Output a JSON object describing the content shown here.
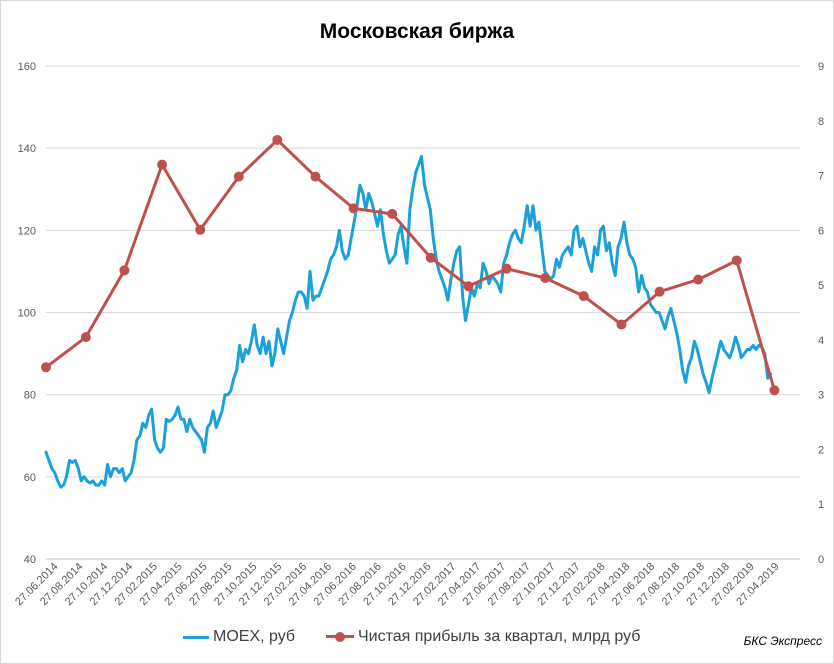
{
  "chart_data": {
    "type": "line",
    "title": "Московская биржа",
    "left_axis": {
      "ylim": [
        40,
        160
      ],
      "ticks": [
        40,
        60,
        80,
        100,
        120,
        140,
        160
      ]
    },
    "right_axis": {
      "ylim": [
        0,
        9
      ],
      "ticks": [
        0,
        1,
        2,
        3,
        4,
        5,
        6,
        7,
        8,
        9
      ]
    },
    "x_range": [
      "2014-06-27",
      "2019-05-31"
    ],
    "x_tick_labels": [
      "27.06.2014",
      "27.08.2014",
      "27.10.2014",
      "27.12.2014",
      "27.02.2015",
      "27.04.2015",
      "27.06.2015",
      "27.08.2015",
      "27.10.2015",
      "27.12.2015",
      "27.02.2016",
      "27.04.2016",
      "27.06.2016",
      "27.08.2016",
      "27.10.2016",
      "27.12.2016",
      "27.02.2017",
      "27.04.2017",
      "27.06.2017",
      "27.08.2017",
      "27.10.2017",
      "27.12.2017",
      "27.02.2018",
      "27.04.2018",
      "27.06.2018",
      "27.08.2018",
      "27.10.2018",
      "27.12.2018",
      "27.02.2019",
      "27.04.2019"
    ],
    "grid": true,
    "legend_position": "bottom",
    "series": [
      {
        "name": "MOEX, руб",
        "axis": "left",
        "color": "#1ba1d9",
        "points": [
          [
            "2014-06-27",
            66
          ],
          [
            "2014-07-04",
            64
          ],
          [
            "2014-07-11",
            62
          ],
          [
            "2014-07-18",
            61
          ],
          [
            "2014-07-25",
            59
          ],
          [
            "2014-08-01",
            57.5
          ],
          [
            "2014-08-08",
            58
          ],
          [
            "2014-08-15",
            60
          ],
          [
            "2014-08-22",
            64
          ],
          [
            "2014-08-29",
            63.5
          ],
          [
            "2014-09-05",
            64
          ],
          [
            "2014-09-12",
            62
          ],
          [
            "2014-09-19",
            59
          ],
          [
            "2014-09-26",
            60
          ],
          [
            "2014-10-03",
            59
          ],
          [
            "2014-10-10",
            58.5
          ],
          [
            "2014-10-17",
            59
          ],
          [
            "2014-10-24",
            58
          ],
          [
            "2014-10-31",
            58
          ],
          [
            "2014-11-07",
            59
          ],
          [
            "2014-11-14",
            58
          ],
          [
            "2014-11-21",
            63
          ],
          [
            "2014-11-28",
            60
          ],
          [
            "2014-12-05",
            62
          ],
          [
            "2014-12-12",
            62
          ],
          [
            "2014-12-19",
            61
          ],
          [
            "2014-12-26",
            62
          ],
          [
            "2015-01-02",
            59
          ],
          [
            "2015-01-09",
            60
          ],
          [
            "2015-01-16",
            61
          ],
          [
            "2015-01-23",
            64
          ],
          [
            "2015-01-30",
            69
          ],
          [
            "2015-02-06",
            70
          ],
          [
            "2015-02-13",
            73
          ],
          [
            "2015-02-20",
            72
          ],
          [
            "2015-02-27",
            75
          ],
          [
            "2015-03-06",
            76.5
          ],
          [
            "2015-03-13",
            69
          ],
          [
            "2015-03-20",
            67
          ],
          [
            "2015-03-27",
            66
          ],
          [
            "2015-04-03",
            67
          ],
          [
            "2015-04-10",
            74
          ],
          [
            "2015-04-17",
            73.5
          ],
          [
            "2015-04-24",
            74
          ],
          [
            "2015-05-01",
            75
          ],
          [
            "2015-05-08",
            77
          ],
          [
            "2015-05-15",
            74
          ],
          [
            "2015-05-22",
            74
          ],
          [
            "2015-05-29",
            71
          ],
          [
            "2015-06-05",
            74
          ],
          [
            "2015-06-12",
            72
          ],
          [
            "2015-06-19",
            71
          ],
          [
            "2015-06-26",
            70
          ],
          [
            "2015-07-03",
            69
          ],
          [
            "2015-07-10",
            66
          ],
          [
            "2015-07-17",
            72
          ],
          [
            "2015-07-24",
            73
          ],
          [
            "2015-07-31",
            76
          ],
          [
            "2015-08-07",
            72
          ],
          [
            "2015-08-14",
            74
          ],
          [
            "2015-08-21",
            76
          ],
          [
            "2015-08-28",
            80
          ],
          [
            "2015-09-04",
            80
          ],
          [
            "2015-09-11",
            81
          ],
          [
            "2015-09-18",
            84
          ],
          [
            "2015-09-25",
            86
          ],
          [
            "2015-10-02",
            92
          ],
          [
            "2015-10-09",
            88
          ],
          [
            "2015-10-16",
            91
          ],
          [
            "2015-10-23",
            90
          ],
          [
            "2015-10-30",
            93
          ],
          [
            "2015-11-06",
            97
          ],
          [
            "2015-11-13",
            92
          ],
          [
            "2015-11-20",
            90
          ],
          [
            "2015-11-27",
            94
          ],
          [
            "2015-12-04",
            90
          ],
          [
            "2015-12-11",
            93
          ],
          [
            "2015-12-18",
            87
          ],
          [
            "2015-12-25",
            90
          ],
          [
            "2016-01-01",
            96
          ],
          [
            "2016-01-08",
            93
          ],
          [
            "2016-01-15",
            90
          ],
          [
            "2016-01-22",
            94
          ],
          [
            "2016-01-29",
            98
          ],
          [
            "2016-02-05",
            100
          ],
          [
            "2016-02-12",
            103
          ],
          [
            "2016-02-19",
            105
          ],
          [
            "2016-02-26",
            105
          ],
          [
            "2016-03-04",
            104
          ],
          [
            "2016-03-11",
            101
          ],
          [
            "2016-03-18",
            110
          ],
          [
            "2016-03-25",
            103
          ],
          [
            "2016-04-01",
            104
          ],
          [
            "2016-04-08",
            104
          ],
          [
            "2016-04-15",
            106
          ],
          [
            "2016-04-22",
            108
          ],
          [
            "2016-04-29",
            110
          ],
          [
            "2016-05-06",
            113
          ],
          [
            "2016-05-13",
            114
          ],
          [
            "2016-05-20",
            116
          ],
          [
            "2016-05-27",
            120
          ],
          [
            "2016-06-03",
            115
          ],
          [
            "2016-06-10",
            113
          ],
          [
            "2016-06-17",
            114
          ],
          [
            "2016-06-24",
            118
          ],
          [
            "2016-07-01",
            122
          ],
          [
            "2016-07-08",
            126
          ],
          [
            "2016-07-15",
            131
          ],
          [
            "2016-07-22",
            129
          ],
          [
            "2016-07-29",
            125
          ],
          [
            "2016-08-05",
            129
          ],
          [
            "2016-08-12",
            127
          ],
          [
            "2016-08-19",
            124
          ],
          [
            "2016-08-26",
            121
          ],
          [
            "2016-09-02",
            125
          ],
          [
            "2016-09-09",
            119
          ],
          [
            "2016-09-16",
            115
          ],
          [
            "2016-09-23",
            112
          ],
          [
            "2016-09-30",
            113
          ],
          [
            "2016-10-07",
            114
          ],
          [
            "2016-10-14",
            119
          ],
          [
            "2016-10-21",
            121
          ],
          [
            "2016-10-28",
            116
          ],
          [
            "2016-11-04",
            112
          ],
          [
            "2016-11-11",
            125
          ],
          [
            "2016-11-18",
            130
          ],
          [
            "2016-11-25",
            134
          ],
          [
            "2016-12-02",
            136
          ],
          [
            "2016-12-09",
            138
          ],
          [
            "2016-12-16",
            131
          ],
          [
            "2016-12-23",
            128
          ],
          [
            "2016-12-30",
            125
          ],
          [
            "2017-01-06",
            118
          ],
          [
            "2017-01-13",
            113
          ],
          [
            "2017-01-20",
            110
          ],
          [
            "2017-01-27",
            108
          ],
          [
            "2017-02-03",
            106
          ],
          [
            "2017-02-10",
            103
          ],
          [
            "2017-02-17",
            108
          ],
          [
            "2017-02-24",
            112
          ],
          [
            "2017-03-03",
            115
          ],
          [
            "2017-03-10",
            116
          ],
          [
            "2017-03-17",
            104
          ],
          [
            "2017-03-24",
            98
          ],
          [
            "2017-03-31",
            102
          ],
          [
            "2017-04-07",
            106
          ],
          [
            "2017-04-14",
            104
          ],
          [
            "2017-04-21",
            107
          ],
          [
            "2017-04-28",
            106
          ],
          [
            "2017-05-05",
            112
          ],
          [
            "2017-05-12",
            110
          ],
          [
            "2017-05-19",
            107
          ],
          [
            "2017-05-26",
            109
          ],
          [
            "2017-06-02",
            108
          ],
          [
            "2017-06-09",
            107
          ],
          [
            "2017-06-16",
            105
          ],
          [
            "2017-06-23",
            112
          ],
          [
            "2017-06-30",
            114
          ],
          [
            "2017-07-07",
            117
          ],
          [
            "2017-07-14",
            119
          ],
          [
            "2017-07-21",
            120
          ],
          [
            "2017-07-28",
            118
          ],
          [
            "2017-08-04",
            117
          ],
          [
            "2017-08-11",
            121
          ],
          [
            "2017-08-18",
            126
          ],
          [
            "2017-08-25",
            121
          ],
          [
            "2017-09-01",
            126
          ],
          [
            "2017-09-08",
            120
          ],
          [
            "2017-09-15",
            122
          ],
          [
            "2017-09-22",
            116
          ],
          [
            "2017-09-29",
            110
          ],
          [
            "2017-10-06",
            109
          ],
          [
            "2017-10-13",
            108
          ],
          [
            "2017-10-20",
            109
          ],
          [
            "2017-10-27",
            113
          ],
          [
            "2017-11-03",
            111
          ],
          [
            "2017-11-10",
            114
          ],
          [
            "2017-11-17",
            115
          ],
          [
            "2017-11-24",
            116
          ],
          [
            "2017-12-01",
            114
          ],
          [
            "2017-12-08",
            120
          ],
          [
            "2017-12-15",
            121
          ],
          [
            "2017-12-22",
            116
          ],
          [
            "2017-12-29",
            118
          ],
          [
            "2018-01-05",
            115
          ],
          [
            "2018-01-12",
            112
          ],
          [
            "2018-01-19",
            110
          ],
          [
            "2018-01-26",
            116
          ],
          [
            "2018-02-02",
            114
          ],
          [
            "2018-02-09",
            120
          ],
          [
            "2018-02-16",
            121
          ],
          [
            "2018-02-23",
            115
          ],
          [
            "2018-03-02",
            117
          ],
          [
            "2018-03-09",
            112
          ],
          [
            "2018-03-16",
            109
          ],
          [
            "2018-03-23",
            116
          ],
          [
            "2018-03-30",
            118
          ],
          [
            "2018-04-06",
            122
          ],
          [
            "2018-04-13",
            117
          ],
          [
            "2018-04-20",
            114
          ],
          [
            "2018-04-27",
            113
          ],
          [
            "2018-05-04",
            111
          ],
          [
            "2018-05-11",
            105
          ],
          [
            "2018-05-18",
            109
          ],
          [
            "2018-05-25",
            106
          ],
          [
            "2018-06-01",
            105
          ],
          [
            "2018-06-08",
            102
          ],
          [
            "2018-06-15",
            101
          ],
          [
            "2018-06-22",
            100
          ],
          [
            "2018-06-29",
            100
          ],
          [
            "2018-07-06",
            98
          ],
          [
            "2018-07-13",
            96
          ],
          [
            "2018-07-20",
            99
          ],
          [
            "2018-07-27",
            101
          ],
          [
            "2018-08-03",
            98
          ],
          [
            "2018-08-10",
            95
          ],
          [
            "2018-08-17",
            91
          ],
          [
            "2018-08-24",
            86
          ],
          [
            "2018-08-31",
            83
          ],
          [
            "2018-09-07",
            87
          ],
          [
            "2018-09-14",
            89
          ],
          [
            "2018-09-21",
            93
          ],
          [
            "2018-09-28",
            91
          ],
          [
            "2018-10-05",
            88
          ],
          [
            "2018-10-12",
            85
          ],
          [
            "2018-10-19",
            83
          ],
          [
            "2018-10-26",
            80.5
          ],
          [
            "2018-11-02",
            84
          ],
          [
            "2018-11-09",
            87
          ],
          [
            "2018-11-16",
            90
          ],
          [
            "2018-11-23",
            93
          ],
          [
            "2018-11-30",
            91
          ],
          [
            "2018-12-07",
            90
          ],
          [
            "2018-12-14",
            89
          ],
          [
            "2018-12-21",
            91
          ],
          [
            "2018-12-28",
            94
          ],
          [
            "2019-01-04",
            92
          ],
          [
            "2019-01-11",
            89
          ],
          [
            "2019-01-18",
            90
          ],
          [
            "2019-01-25",
            91
          ],
          [
            "2019-02-01",
            91
          ],
          [
            "2019-02-08",
            92
          ],
          [
            "2019-02-15",
            91
          ],
          [
            "2019-02-22",
            92
          ],
          [
            "2019-03-01",
            91.5
          ],
          [
            "2019-03-08",
            90
          ],
          [
            "2019-03-15",
            84
          ],
          [
            "2019-03-22",
            85
          ]
        ]
      },
      {
        "name": "Чистая прибыль за квартал, млрд руб",
        "axis": "right",
        "color": "#c0504d",
        "points": [
          [
            "2014-06-27",
            3.5
          ],
          [
            "2014-09-30",
            4.05
          ],
          [
            "2014-12-31",
            5.27
          ],
          [
            "2015-03-31",
            7.2
          ],
          [
            "2015-06-30",
            6.01
          ],
          [
            "2015-09-30",
            6.98
          ],
          [
            "2015-12-31",
            7.65
          ],
          [
            "2016-03-31",
            6.98
          ],
          [
            "2016-06-30",
            6.4
          ],
          [
            "2016-09-30",
            6.3
          ],
          [
            "2016-12-31",
            5.5
          ],
          [
            "2017-03-31",
            4.98
          ],
          [
            "2017-06-30",
            5.3
          ],
          [
            "2017-09-30",
            5.13
          ],
          [
            "2017-12-31",
            4.8
          ],
          [
            "2018-03-31",
            4.28
          ],
          [
            "2018-06-30",
            4.88
          ],
          [
            "2018-09-30",
            5.1
          ],
          [
            "2018-12-31",
            5.45
          ],
          [
            "2019-03-31",
            3.08
          ]
        ]
      }
    ]
  },
  "source_label": "БКС Экспресс"
}
